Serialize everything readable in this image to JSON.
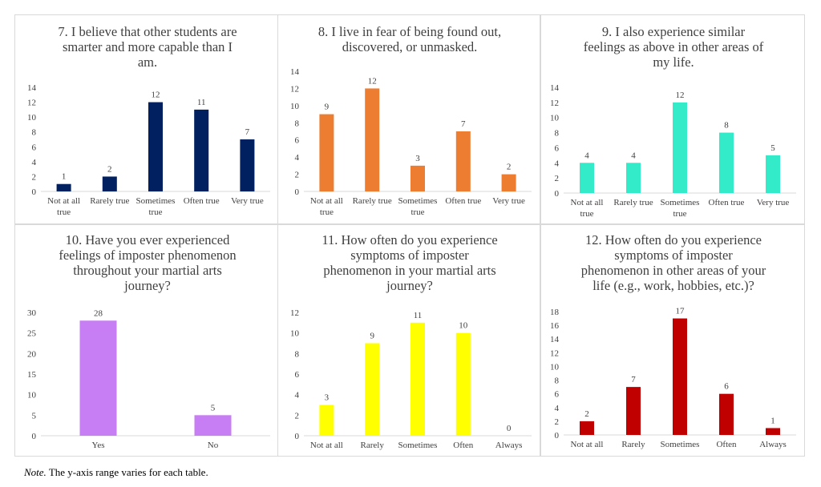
{
  "note": {
    "label": "Note.",
    "text": " The y-axis range varies for each table."
  },
  "chart_data": [
    {
      "type": "bar",
      "title": [
        "7. I believe that other students are",
        "smarter and more capable than I",
        "am."
      ],
      "categories": [
        [
          "Not at all",
          "true"
        ],
        [
          "Rarely true"
        ],
        [
          "Sometimes",
          "true"
        ],
        [
          "Often true"
        ],
        [
          "Very true"
        ]
      ],
      "values": [
        1,
        2,
        12,
        11,
        7
      ],
      "color": "#002060",
      "ylim": [
        0,
        14
      ],
      "yticks": [
        0,
        2,
        4,
        6,
        8,
        10,
        12,
        14
      ],
      "xlabel": "",
      "ylabel": "",
      "grid": false
    },
    {
      "type": "bar",
      "title": [
        "8. I live in fear of being found out,",
        "discovered, or unmasked."
      ],
      "categories": [
        [
          "Not at all",
          "true"
        ],
        [
          "Rarely true"
        ],
        [
          "Sometimes",
          "true"
        ],
        [
          "Often true"
        ],
        [
          "Very true"
        ]
      ],
      "values": [
        9,
        12,
        3,
        7,
        2
      ],
      "color": "#ED7D31",
      "ylim": [
        0,
        14
      ],
      "yticks": [
        0,
        2,
        4,
        6,
        8,
        10,
        12,
        14
      ],
      "xlabel": "",
      "ylabel": "",
      "grid": false
    },
    {
      "type": "bar",
      "title": [
        "9. I also experience similar",
        "feelings as above in other areas of",
        "my life."
      ],
      "categories": [
        [
          "Not at all",
          "true"
        ],
        [
          "Rarely true"
        ],
        [
          "Sometimes",
          "true"
        ],
        [
          "Often true"
        ],
        [
          "Very true"
        ]
      ],
      "values": [
        4,
        4,
        12,
        8,
        5
      ],
      "color": "#33EBC9",
      "ylim": [
        0,
        14
      ],
      "yticks": [
        0,
        2,
        4,
        6,
        8,
        10,
        12,
        14
      ],
      "xlabel": "",
      "ylabel": "",
      "grid": false
    },
    {
      "type": "bar",
      "title": [
        "10. Have you ever experienced",
        "feelings of imposter phenomenon",
        "throughout your martial arts",
        "journey?"
      ],
      "categories": [
        [
          "Yes"
        ],
        [
          "No"
        ]
      ],
      "values": [
        28,
        5
      ],
      "color": "#C77DF3",
      "ylim": [
        0,
        30
      ],
      "yticks": [
        0,
        5,
        10,
        15,
        20,
        25,
        30
      ],
      "xlabel": "",
      "ylabel": "",
      "grid": false
    },
    {
      "type": "bar",
      "title": [
        "11. How often do you experience",
        "symptoms of imposter",
        "phenomenon in your martial arts",
        "journey?"
      ],
      "categories": [
        [
          "Not at all"
        ],
        [
          "Rarely"
        ],
        [
          "Sometimes"
        ],
        [
          "Often"
        ],
        [
          "Always"
        ]
      ],
      "values": [
        3,
        9,
        11,
        10,
        0
      ],
      "color": "#FFFF00",
      "ylim": [
        0,
        12
      ],
      "yticks": [
        0,
        2,
        4,
        6,
        8,
        10,
        12
      ],
      "xlabel": "",
      "ylabel": "",
      "grid": false
    },
    {
      "type": "bar",
      "title": [
        "12. How often do you experience",
        "symptoms of imposter",
        "phenomenon in other areas of your",
        "life (e.g., work, hobbies, etc.)?"
      ],
      "categories": [
        [
          "Not at all"
        ],
        [
          "Rarely"
        ],
        [
          "Sometimes"
        ],
        [
          "Often"
        ],
        [
          "Always"
        ]
      ],
      "values": [
        2,
        7,
        17,
        6,
        1
      ],
      "color": "#C00000",
      "ylim": [
        0,
        18
      ],
      "yticks": [
        0,
        2,
        4,
        6,
        8,
        10,
        12,
        14,
        16,
        18
      ],
      "xlabel": "",
      "ylabel": "",
      "grid": false
    }
  ]
}
